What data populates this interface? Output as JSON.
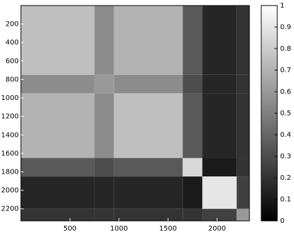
{
  "chart_data": {
    "type": "heatmap",
    "colormap": "gray",
    "x_edges": [
      0,
      750,
      950,
      1650,
      1850,
      2200,
      2330
    ],
    "y_edges": [
      0,
      750,
      950,
      1650,
      1850,
      2200,
      2330
    ],
    "values": [
      [
        0.75,
        0.55,
        0.7,
        0.35,
        0.15,
        0.2
      ],
      [
        0.55,
        0.6,
        0.55,
        0.3,
        0.15,
        0.2
      ],
      [
        0.7,
        0.55,
        0.75,
        0.35,
        0.15,
        0.2
      ],
      [
        0.35,
        0.3,
        0.35,
        0.85,
        0.1,
        0.2
      ],
      [
        0.15,
        0.15,
        0.15,
        0.1,
        0.9,
        0.25
      ],
      [
        0.2,
        0.2,
        0.2,
        0.2,
        0.25,
        0.6
      ]
    ],
    "xlim": [
      0,
      2330
    ],
    "xticks": [
      500,
      1000,
      1500,
      2000
    ],
    "ylim": [
      2330,
      0
    ],
    "yticks": [
      200,
      400,
      600,
      800,
      1000,
      1200,
      1400,
      1600,
      1800,
      2000,
      2200
    ],
    "clim": [
      0,
      1
    ],
    "cticks": [
      0,
      0.1,
      0.2,
      0.3,
      0.4,
      0.5,
      0.6,
      0.7,
      0.8,
      0.9,
      1
    ]
  }
}
